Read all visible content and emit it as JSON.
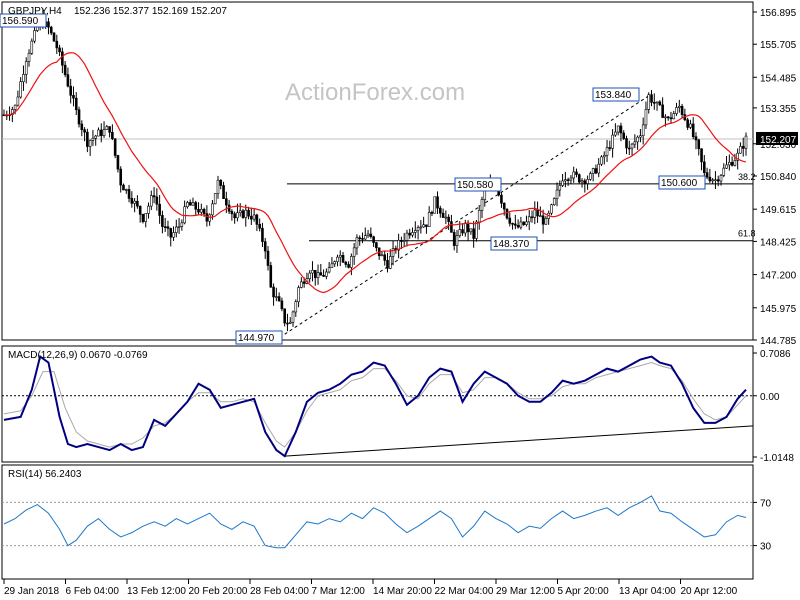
{
  "chart_data": [
    {
      "type": "candlestick",
      "title": "GBPJPY,H4",
      "ohlc_text": "152.236 152.377 152.169 152.207",
      "watermark": "ActionForex.com",
      "y_ticks": [
        "156.895",
        "155.705",
        "154.485",
        "153.355",
        "152.030",
        "150.840",
        "149.615",
        "148.425",
        "147.200",
        "145.975",
        "144.785"
      ],
      "ylim": [
        144.785,
        156.895
      ],
      "current_price": "152.207",
      "sma": {
        "color": "#ee1111"
      },
      "candle_color": "#000000",
      "annotations": {
        "high_start": "156.590",
        "low": "144.970",
        "high": "153.840",
        "sw1": "150.580",
        "sw2": "148.370",
        "sw3": "150.600"
      },
      "fib_levels": [
        {
          "label": "38.2",
          "value": 150.55
        },
        {
          "label": "61.8",
          "value": 148.45
        }
      ],
      "path": [
        [
          0,
          153.1
        ],
        [
          4,
          153.4
        ],
        [
          8,
          155.2
        ],
        [
          13,
          156.6
        ],
        [
          16,
          156.3
        ],
        [
          19,
          155.6
        ],
        [
          22,
          154.6
        ],
        [
          26,
          153.2
        ],
        [
          30,
          152.1
        ],
        [
          34,
          152.4
        ],
        [
          38,
          152.6
        ],
        [
          42,
          150.6
        ],
        [
          46,
          150.0
        ],
        [
          50,
          149.3
        ],
        [
          54,
          150.2
        ],
        [
          57,
          149.0
        ],
        [
          60,
          148.6
        ],
        [
          63,
          149.0
        ],
        [
          66,
          149.8
        ],
        [
          70,
          149.6
        ],
        [
          73,
          149.2
        ],
        [
          77,
          150.6
        ],
        [
          79,
          150.1
        ],
        [
          83,
          149.3
        ],
        [
          87,
          149.5
        ],
        [
          90,
          149.3
        ],
        [
          94,
          148.2
        ],
        [
          96,
          146.7
        ],
        [
          99,
          146.1
        ],
        [
          101,
          145.5
        ],
        [
          103,
          145.4
        ],
        [
          106,
          146.7
        ],
        [
          110,
          147.4
        ],
        [
          113,
          147.1
        ],
        [
          117,
          147.3
        ],
        [
          120,
          148.0
        ],
        [
          124,
          147.6
        ],
        [
          127,
          148.5
        ],
        [
          131,
          148.7
        ],
        [
          134,
          148.1
        ],
        [
          138,
          147.6
        ],
        [
          141,
          148.2
        ],
        [
          145,
          148.7
        ],
        [
          148,
          149.0
        ],
        [
          152,
          149.1
        ],
        [
          155,
          149.9
        ],
        [
          159,
          149.3
        ],
        [
          162,
          148.4
        ],
        [
          166,
          149.0
        ],
        [
          169,
          148.6
        ],
        [
          173,
          150.4
        ],
        [
          177,
          150.5
        ],
        [
          181,
          149.4
        ],
        [
          184,
          148.9
        ],
        [
          188,
          149.1
        ],
        [
          191,
          149.5
        ],
        [
          195,
          149.1
        ],
        [
          198,
          149.9
        ],
        [
          201,
          150.8
        ],
        [
          204,
          150.9
        ],
        [
          208,
          150.7
        ],
        [
          211,
          150.8
        ],
        [
          215,
          151.4
        ],
        [
          218,
          152.0
        ],
        [
          221,
          152.6
        ],
        [
          225,
          151.8
        ],
        [
          229,
          152.4
        ],
        [
          232,
          153.8
        ],
        [
          236,
          153.3
        ],
        [
          239,
          152.9
        ],
        [
          243,
          153.4
        ],
        [
          247,
          152.6
        ],
        [
          250,
          151.7
        ],
        [
          252,
          150.9
        ],
        [
          256,
          150.7
        ],
        [
          260,
          151.2
        ],
        [
          264,
          151.6
        ],
        [
          267,
          152.2
        ]
      ],
      "x_ticks": [
        "29 Jan 2018",
        "6 Feb 04:00",
        "13 Feb 12:00",
        "20 Feb 20:00",
        "28 Feb 04:00",
        "7 Mar 12:00",
        "14 Mar 20:00",
        "22 Mar 04:00",
        "29 Mar 12:00",
        "5 Apr 20:00",
        "13 Apr 04:00",
        "20 Apr 12:00"
      ]
    },
    {
      "type": "line",
      "title": "MACD(12,26,9) 0.0670 -0.0769",
      "y_ticks": [
        "0.7086",
        "0.00",
        "-1.0148"
      ],
      "ylim": [
        -1.0148,
        0.7086
      ],
      "colors": {
        "macd": "#000080",
        "signal": "#a8a8a8",
        "trend": "#000000"
      },
      "trend_line": [
        [
          101,
          -1.0
        ],
        [
          267,
          -0.45
        ]
      ],
      "macd": [
        [
          0,
          -0.4
        ],
        [
          6,
          -0.35
        ],
        [
          10,
          0.1
        ],
        [
          13,
          0.65
        ],
        [
          16,
          0.55
        ],
        [
          20,
          -0.35
        ],
        [
          23,
          -0.8
        ],
        [
          26,
          -0.85
        ],
        [
          30,
          -0.8
        ],
        [
          34,
          -0.85
        ],
        [
          38,
          -0.9
        ],
        [
          42,
          -0.8
        ],
        [
          46,
          -0.9
        ],
        [
          50,
          -0.85
        ],
        [
          54,
          -0.4
        ],
        [
          58,
          -0.5
        ],
        [
          62,
          -0.3
        ],
        [
          66,
          -0.1
        ],
        [
          70,
          0.2
        ],
        [
          74,
          0.1
        ],
        [
          78,
          -0.2
        ],
        [
          82,
          -0.15
        ],
        [
          86,
          -0.1
        ],
        [
          90,
          -0.05
        ],
        [
          94,
          -0.6
        ],
        [
          98,
          -0.9
        ],
        [
          101,
          -1.0
        ],
        [
          105,
          -0.6
        ],
        [
          109,
          -0.1
        ],
        [
          113,
          0.05
        ],
        [
          117,
          0.1
        ],
        [
          121,
          0.2
        ],
        [
          125,
          0.35
        ],
        [
          129,
          0.4
        ],
        [
          133,
          0.55
        ],
        [
          137,
          0.5
        ],
        [
          141,
          0.2
        ],
        [
          145,
          -0.15
        ],
        [
          149,
          0.0
        ],
        [
          153,
          0.3
        ],
        [
          157,
          0.45
        ],
        [
          161,
          0.4
        ],
        [
          165,
          -0.1
        ],
        [
          169,
          0.2
        ],
        [
          173,
          0.4
        ],
        [
          177,
          0.3
        ],
        [
          181,
          0.2
        ],
        [
          185,
          0.0
        ],
        [
          189,
          -0.1
        ],
        [
          193,
          -0.1
        ],
        [
          197,
          0.05
        ],
        [
          201,
          0.25
        ],
        [
          205,
          0.2
        ],
        [
          209,
          0.25
        ],
        [
          213,
          0.35
        ],
        [
          217,
          0.45
        ],
        [
          221,
          0.4
        ],
        [
          225,
          0.5
        ],
        [
          229,
          0.6
        ],
        [
          233,
          0.65
        ],
        [
          236,
          0.55
        ],
        [
          240,
          0.5
        ],
        [
          244,
          0.2
        ],
        [
          248,
          -0.2
        ],
        [
          252,
          -0.45
        ],
        [
          256,
          -0.45
        ],
        [
          260,
          -0.35
        ],
        [
          264,
          -0.05
        ],
        [
          267,
          0.1
        ]
      ],
      "signal": [
        [
          0,
          -0.3
        ],
        [
          6,
          -0.25
        ],
        [
          10,
          0.0
        ],
        [
          14,
          0.4
        ],
        [
          18,
          0.4
        ],
        [
          22,
          -0.2
        ],
        [
          26,
          -0.6
        ],
        [
          30,
          -0.75
        ],
        [
          34,
          -0.8
        ],
        [
          38,
          -0.85
        ],
        [
          42,
          -0.8
        ],
        [
          46,
          -0.8
        ],
        [
          50,
          -0.7
        ],
        [
          54,
          -0.5
        ],
        [
          58,
          -0.45
        ],
        [
          62,
          -0.3
        ],
        [
          66,
          -0.1
        ],
        [
          70,
          0.05
        ],
        [
          74,
          0.05
        ],
        [
          78,
          -0.1
        ],
        [
          82,
          -0.1
        ],
        [
          86,
          -0.05
        ],
        [
          90,
          -0.1
        ],
        [
          94,
          -0.45
        ],
        [
          98,
          -0.75
        ],
        [
          101,
          -0.85
        ],
        [
          105,
          -0.6
        ],
        [
          109,
          -0.25
        ],
        [
          113,
          0.0
        ],
        [
          117,
          0.05
        ],
        [
          121,
          0.1
        ],
        [
          125,
          0.25
        ],
        [
          129,
          0.3
        ],
        [
          133,
          0.45
        ],
        [
          137,
          0.45
        ],
        [
          141,
          0.25
        ],
        [
          145,
          0.0
        ],
        [
          149,
          -0.05
        ],
        [
          153,
          0.2
        ],
        [
          157,
          0.35
        ],
        [
          161,
          0.35
        ],
        [
          165,
          0.05
        ],
        [
          169,
          0.1
        ],
        [
          173,
          0.3
        ],
        [
          177,
          0.3
        ],
        [
          181,
          0.2
        ],
        [
          185,
          0.05
        ],
        [
          189,
          -0.05
        ],
        [
          193,
          -0.05
        ],
        [
          197,
          0.0
        ],
        [
          201,
          0.15
        ],
        [
          205,
          0.2
        ],
        [
          209,
          0.2
        ],
        [
          213,
          0.3
        ],
        [
          217,
          0.35
        ],
        [
          221,
          0.4
        ],
        [
          225,
          0.45
        ],
        [
          229,
          0.5
        ],
        [
          233,
          0.55
        ],
        [
          236,
          0.5
        ],
        [
          240,
          0.45
        ],
        [
          244,
          0.25
        ],
        [
          248,
          -0.05
        ],
        [
          252,
          -0.3
        ],
        [
          256,
          -0.4
        ],
        [
          260,
          -0.35
        ],
        [
          264,
          -0.15
        ],
        [
          267,
          0.0
        ]
      ]
    },
    {
      "type": "line",
      "title": "RSI(14) 56.2403",
      "y_ticks": [
        "70",
        "30"
      ],
      "ylim": [
        0,
        100
      ],
      "levels": [
        70,
        30
      ],
      "color": "#1e78c8",
      "values": [
        [
          0,
          50
        ],
        [
          4,
          55
        ],
        [
          8,
          63
        ],
        [
          12,
          68
        ],
        [
          16,
          60
        ],
        [
          20,
          45
        ],
        [
          23,
          30
        ],
        [
          26,
          35
        ],
        [
          30,
          48
        ],
        [
          34,
          55
        ],
        [
          38,
          45
        ],
        [
          42,
          38
        ],
        [
          46,
          42
        ],
        [
          50,
          48
        ],
        [
          54,
          52
        ],
        [
          58,
          48
        ],
        [
          62,
          55
        ],
        [
          66,
          50
        ],
        [
          70,
          55
        ],
        [
          74,
          60
        ],
        [
          78,
          50
        ],
        [
          82,
          45
        ],
        [
          86,
          52
        ],
        [
          90,
          48
        ],
        [
          94,
          30
        ],
        [
          98,
          28
        ],
        [
          101,
          28
        ],
        [
          105,
          40
        ],
        [
          109,
          52
        ],
        [
          113,
          50
        ],
        [
          117,
          55
        ],
        [
          121,
          52
        ],
        [
          125,
          60
        ],
        [
          129,
          55
        ],
        [
          133,
          65
        ],
        [
          137,
          60
        ],
        [
          141,
          50
        ],
        [
          145,
          42
        ],
        [
          149,
          48
        ],
        [
          153,
          55
        ],
        [
          157,
          62
        ],
        [
          161,
          55
        ],
        [
          165,
          38
        ],
        [
          169,
          48
        ],
        [
          173,
          62
        ],
        [
          177,
          55
        ],
        [
          181,
          50
        ],
        [
          185,
          42
        ],
        [
          189,
          48
        ],
        [
          193,
          46
        ],
        [
          197,
          55
        ],
        [
          201,
          62
        ],
        [
          205,
          55
        ],
        [
          209,
          58
        ],
        [
          213,
          62
        ],
        [
          217,
          65
        ],
        [
          221,
          58
        ],
        [
          225,
          65
        ],
        [
          229,
          70
        ],
        [
          233,
          76
        ],
        [
          236,
          62
        ],
        [
          240,
          60
        ],
        [
          244,
          52
        ],
        [
          248,
          45
        ],
        [
          252,
          38
        ],
        [
          256,
          40
        ],
        [
          260,
          52
        ],
        [
          264,
          58
        ],
        [
          267,
          56
        ]
      ]
    }
  ]
}
